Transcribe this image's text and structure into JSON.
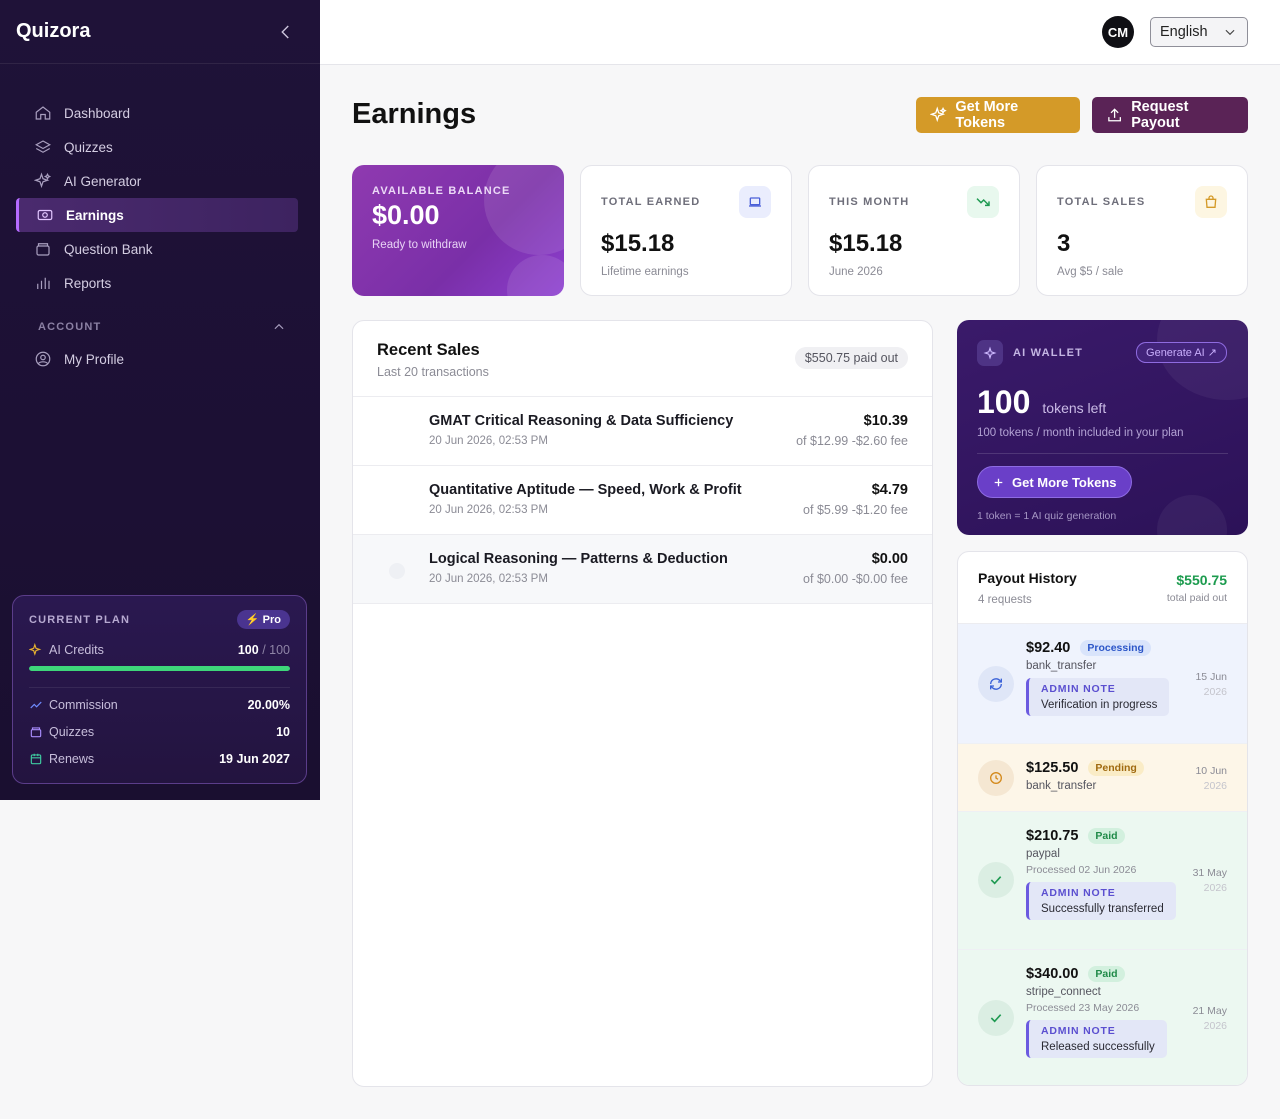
{
  "app": {
    "brand": "Quizora"
  },
  "sidebar": {
    "items": [
      {
        "label": "Dashboard",
        "icon": "home-icon"
      },
      {
        "label": "Quizzes",
        "icon": "layers-icon"
      },
      {
        "label": "AI Generator",
        "icon": "sparkles-icon"
      },
      {
        "label": "Earnings",
        "icon": "money-icon",
        "active": true
      },
      {
        "label": "Question Bank",
        "icon": "archive-icon"
      },
      {
        "label": "Reports",
        "icon": "bar-chart-icon"
      }
    ],
    "account_section": "ACCOUNT",
    "account_items": [
      {
        "label": "My Profile",
        "icon": "user-circle-icon"
      }
    ],
    "plan": {
      "title": "CURRENT PLAN",
      "badge": "Pro",
      "credits_label": "AI Credits",
      "credits_used": "100",
      "credits_total": "/ 100",
      "credits_fraction": 1.0,
      "commission_label": "Commission",
      "commission_value": "20.00%",
      "quizzes_label": "Quizzes",
      "quizzes_value": "10",
      "renews_label": "Renews",
      "renews_value": "19 Jun 2027"
    }
  },
  "topbar": {
    "avatar": "CM",
    "language": "English"
  },
  "page": {
    "title": "Earnings",
    "btn_tokens": "Get More Tokens",
    "btn_payout": "Request Payout"
  },
  "stats": {
    "balance": {
      "label": "AVAILABLE BALANCE",
      "value": "$0.00",
      "sub": "Ready to withdraw"
    },
    "earned": {
      "label": "TOTAL EARNED",
      "value": "$15.18",
      "sub": "Lifetime earnings"
    },
    "month": {
      "label": "THIS MONTH",
      "value": "$15.18",
      "sub": "June 2026"
    },
    "sales": {
      "label": "TOTAL SALES",
      "value": "3",
      "sub": "Avg $5 / sale"
    }
  },
  "recent_sales": {
    "title": "Recent Sales",
    "subtitle": "Last 20 transactions",
    "badge": "$550.75 paid out",
    "rows": [
      {
        "name": "GMAT Critical Reasoning & Data Sufficiency",
        "date": "20 Jun 2026, 02:53 PM",
        "amount": "$10.39",
        "fee": "of $12.99 -$2.60 fee"
      },
      {
        "name": "Quantitative Aptitude — Speed, Work & Profit",
        "date": "20 Jun 2026, 02:53 PM",
        "amount": "$4.79",
        "fee": "of $5.99 -$1.20 fee"
      },
      {
        "name": "Logical Reasoning — Patterns & Deduction",
        "date": "20 Jun 2026, 02:53 PM",
        "amount": "$0.00",
        "fee": "of $0.00 -$0.00 fee"
      }
    ]
  },
  "wallet": {
    "label": "AI WALLET",
    "generate": "Generate AI ↗",
    "tokens": "100",
    "tokens_label": "tokens left",
    "sub": "100 tokens / month included in your plan",
    "button": "Get More Tokens",
    "foot": "1 token = 1 AI quiz generation"
  },
  "payout_history": {
    "title": "Payout History",
    "subtitle": "4 requests",
    "total": "$550.75",
    "total_label": "total paid out",
    "items": [
      {
        "amount": "$92.40",
        "status": "Processing",
        "method": "bank_transfer",
        "note_label": "ADMIN NOTE",
        "note": "Verification in progress",
        "day": "15 Jun",
        "year": "2026"
      },
      {
        "amount": "$125.50",
        "status": "Pending",
        "method": "bank_transfer",
        "day": "10 Jun",
        "year": "2026"
      },
      {
        "amount": "$210.75",
        "status": "Paid",
        "method": "paypal",
        "processed": "Processed 02 Jun 2026",
        "note_label": "ADMIN NOTE",
        "note": "Successfully transferred",
        "day": "31 May",
        "year": "2026"
      },
      {
        "amount": "$340.00",
        "status": "Paid",
        "method": "stripe_connect",
        "processed": "Processed 23 May 2026",
        "note_label": "ADMIN NOTE",
        "note": "Released successfully",
        "day": "21 May",
        "year": "2026"
      }
    ]
  },
  "colors": {
    "accent": "#b56bff",
    "gold": "#d49a28",
    "plum": "#5a2356",
    "success": "#1c9b4e"
  }
}
